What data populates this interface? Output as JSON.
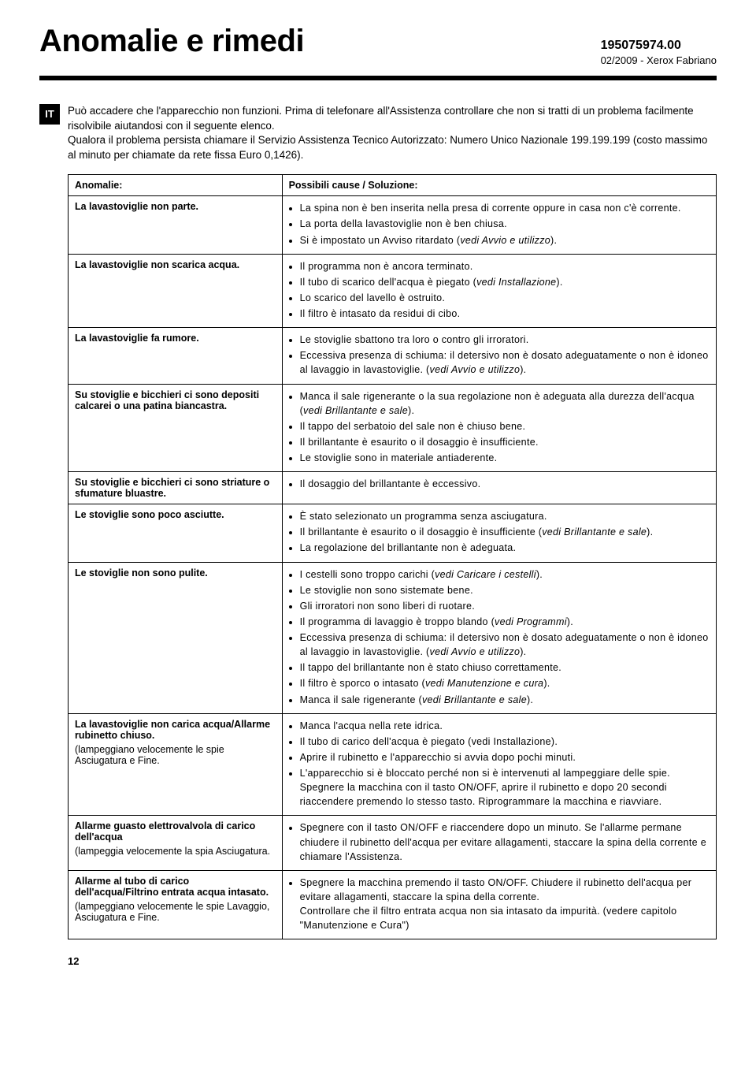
{
  "header": {
    "title": "Anomalie e rimedi",
    "doc_code": "195075974.00",
    "doc_meta": "02/2009 - Xerox Fabriano"
  },
  "lang_tag": "IT",
  "intro": "Può accadere che l'apparecchio non funzioni. Prima di telefonare all'Assistenza controllare che non si tratti di un problema facilmente risolvibile aiutandosi con il seguente elenco.\nQualora il problema persista chiamare il Servizio Assistenza Tecnico Autorizzato: Numero Unico Nazionale 199.199.199 (costo massimo al minuto per chiamate da rete fissa Euro 0,1426).",
  "table": {
    "h1": "Anomalie:",
    "h2": "Possibili cause / Soluzione:",
    "rows": [
      {
        "anom": "La lavastoviglie non parte.",
        "causes": [
          "La spina non è ben inserita nella presa di corrente oppure in casa non c'è corrente.",
          "La porta della lavastoviglie non è ben chiusa.",
          "Si è impostato un Avviso ritardato (<i>vedi Avvio e utilizzo</i>)."
        ]
      },
      {
        "anom": "La lavastoviglie non scarica acqua.",
        "causes": [
          "Il programma non è ancora terminato.",
          "Il tubo di scarico dell'acqua è piegato (<i>vedi Installazione</i>).",
          "Lo scarico del lavello è ostruito.",
          "Il filtro è intasato da residui di cibo."
        ]
      },
      {
        "anom": "La lavastoviglie fa rumore.",
        "causes": [
          "Le stoviglie sbattono tra loro o contro gli irroratori.",
          "Eccessiva presenza di schiuma: il detersivo non è dosato adeguatamente o non è idoneo al lavaggio in lavastoviglie. (<i>vedi Avvio e utilizzo</i>)."
        ]
      },
      {
        "anom": "Su stoviglie e bicchieri ci sono depositi calcarei o una patina biancastra.",
        "causes": [
          "Manca il sale rigenerante o la sua regolazione non è adeguata alla durezza dell'acqua (<i>vedi Brillantante e sale</i>).",
          "Il tappo del serbatoio del sale non è chiuso bene.",
          "Il brillantante è esaurito o il dosaggio è insufficiente.",
          "Le stoviglie sono in materiale antiaderente."
        ]
      },
      {
        "anom": "Su stoviglie e bicchieri ci sono striature o sfumature bluastre.",
        "causes": [
          "Il dosaggio del brillantante è eccessivo."
        ]
      },
      {
        "anom": "Le stoviglie sono poco asciutte.",
        "causes": [
          "È stato selezionato un programma senza asciugatura.",
          "Il brillantante è esaurito o il dosaggio è insufficiente (<i>vedi Brillantante e sale</i>).",
          "La regolazione del brillantante non è adeguata."
        ]
      },
      {
        "anom": "Le stoviglie non sono pulite.",
        "causes": [
          "I cestelli sono troppo carichi (<i>vedi Caricare i cestelli</i>).",
          "Le stoviglie non sono sistemate bene.",
          "Gli irroratori non sono liberi di ruotare.",
          "Il programma di lavaggio è troppo blando (<i>vedi Programmi</i>).",
          "Eccessiva presenza di schiuma: il detersivo non è dosato adeguatamente o non è idoneo al lavaggio in lavastoviglie. (<i>vedi Avvio e utilizzo</i>).",
          "Il tappo del brillantante non è stato chiuso correttamente.",
          "Il filtro è sporco o intasato (<i>vedi Manutenzione e cura</i>).",
          "Manca il sale rigenerante (<i>vedi Brillantante e sale</i>)."
        ]
      },
      {
        "anom": "La lavastoviglie non carica acqua/Allarme rubinetto chiuso.",
        "anom_sub": "(lampeggiano velocemente le spie Asciugatura e Fine.",
        "causes": [
          "Manca l'acqua nella rete idrica.",
          "Il tubo di carico dell'acqua è piegato (vedi Installazione).",
          "Aprire il rubinetto e l'apparecchio si avvia dopo pochi minuti.",
          "L'apparecchio si è bloccato perché non si è intervenuti al lampeggiare delle spie. Spegnere la macchina con il tasto ON/OFF, aprire il rubinetto e dopo 20 secondi riaccendere premendo lo stesso tasto. Riprogrammare la macchina e riavviare."
        ]
      },
      {
        "anom": "Allarme guasto elettrovalvola di carico dell'acqua",
        "anom_sub": "(lampeggia velocemente  la spia Asciugatura.",
        "causes": [
          "Spegnere con il tasto ON/OFF e riaccendere dopo un minuto. Se l'allarme permane chiudere il rubinetto dell'acqua per evitare allagamenti, staccare la spina della corrente e chiamare l'Assistenza."
        ]
      },
      {
        "anom": "Allarme al tubo di  carico dell'acqua/Filtrino entrata acqua intasato.",
        "anom_sub": "(lampeggiano velocemente le spie Lavaggio, Asciugatura e Fine.",
        "causes": [
          "Spegnere la macchina premendo il tasto ON/OFF. Chiudere il rubinetto dell'acqua per evitare allagamenti, staccare la spina della corrente.<br>Controllare che il filtro entrata acqua non sia intasato da impurità. (vedere capitolo \"Manutenzione e Cura\")"
        ]
      }
    ]
  },
  "page_number": "12"
}
